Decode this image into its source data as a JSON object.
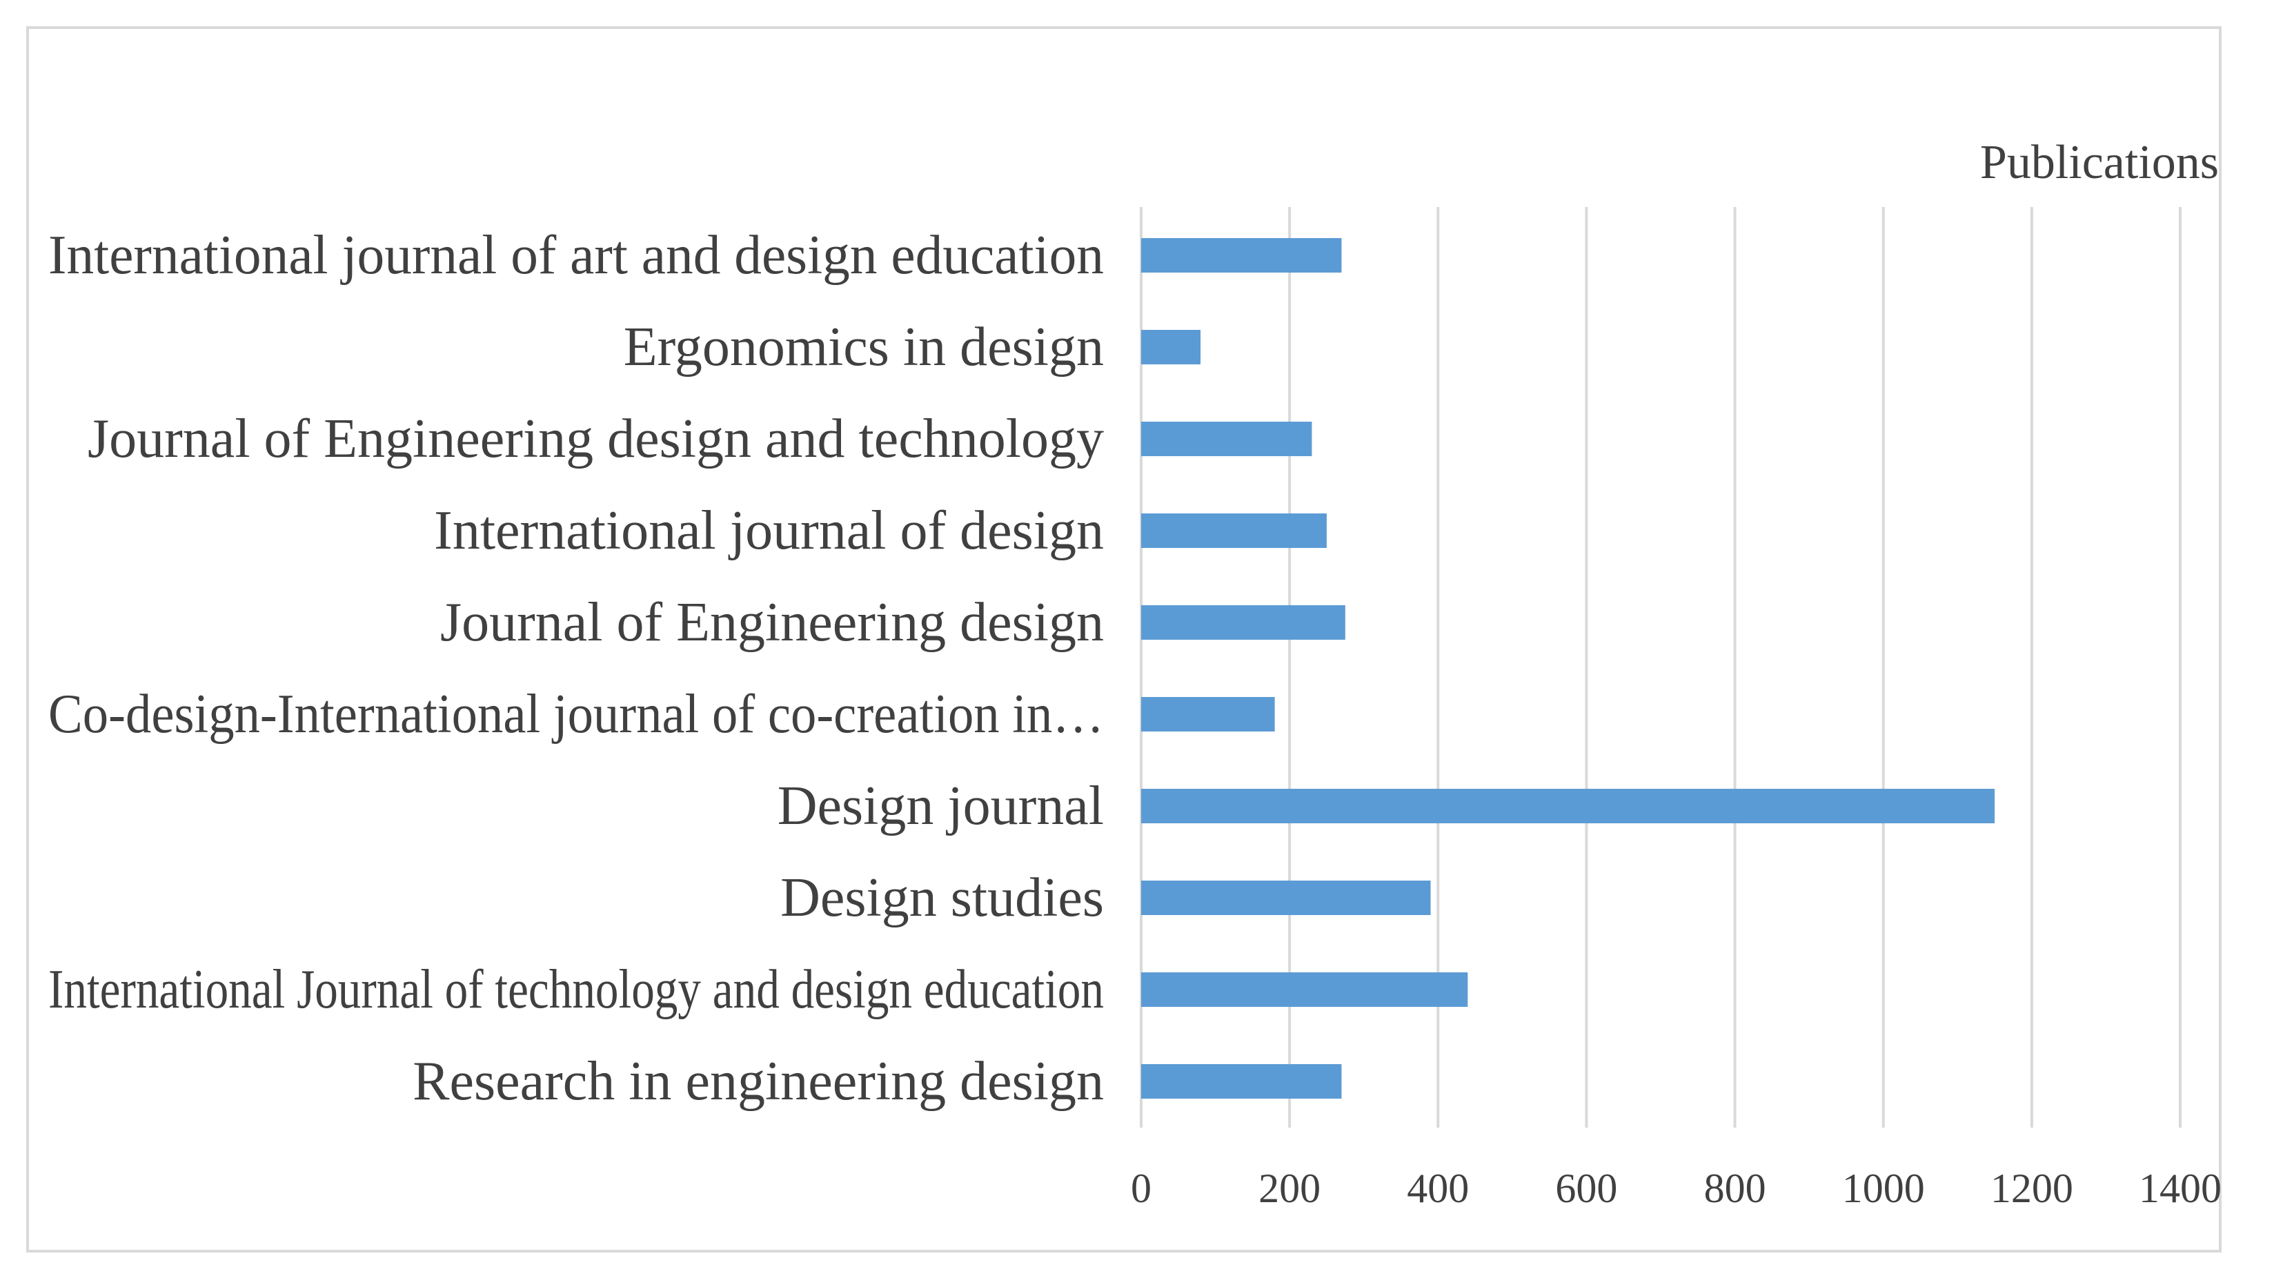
{
  "chart_data": {
    "type": "bar",
    "orientation": "horizontal",
    "title": "",
    "xlabel": "Publications",
    "ylabel": "",
    "xlim": [
      0,
      1400
    ],
    "xticks": [
      0,
      200,
      400,
      600,
      800,
      1000,
      1200,
      1400
    ],
    "grid": true,
    "bar_color": "#5b9bd5",
    "categories": [
      "International journal of art and design education",
      "Ergonomics in design",
      "Journal of Engineering design and technology",
      "International journal of design",
      "Journal of Engineering design",
      "Co-design-International journal of co-creation in…",
      "Design journal",
      "Design studies",
      "International Journal of technology and design education",
      "Research in engineering design"
    ],
    "values": [
      270,
      80,
      230,
      250,
      275,
      180,
      1150,
      390,
      440,
      270
    ]
  }
}
